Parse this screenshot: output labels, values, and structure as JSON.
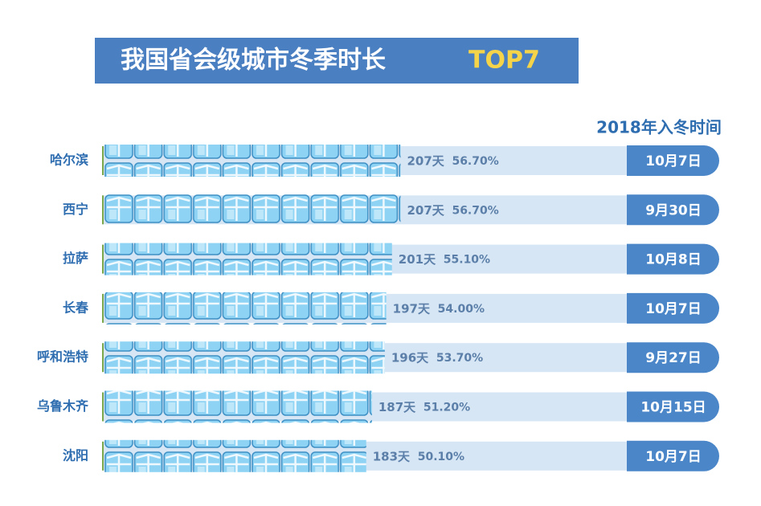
{
  "chart_data": {
    "type": "bar",
    "title": "我国省会级城市冬季时长",
    "title_highlight": "TOP7",
    "date_header": "2018年入冬时间",
    "categories": [
      "哈尔滨",
      "西宁",
      "拉萨",
      "长春",
      "呼和浩特",
      "乌鲁木齐",
      "沈阳"
    ],
    "values": [
      207,
      207,
      201,
      197,
      196,
      187,
      183
    ],
    "value_labels": [
      "207天",
      "207天",
      "201天",
      "197天",
      "196天",
      "187天",
      "183天"
    ],
    "shares": [
      56.7,
      56.7,
      55.1,
      54.0,
      53.7,
      51.2,
      50.1
    ],
    "share_labels": [
      "56.70%",
      "56.70%",
      "55.10%",
      "54.00%",
      "53.70%",
      "51.20%",
      "50.10%"
    ],
    "dates": [
      "10月7日",
      "9月30日",
      "10月8日",
      "10月7日",
      "9月27日",
      "10月15日",
      "10月7日"
    ],
    "color": "#8fd3f4"
  }
}
